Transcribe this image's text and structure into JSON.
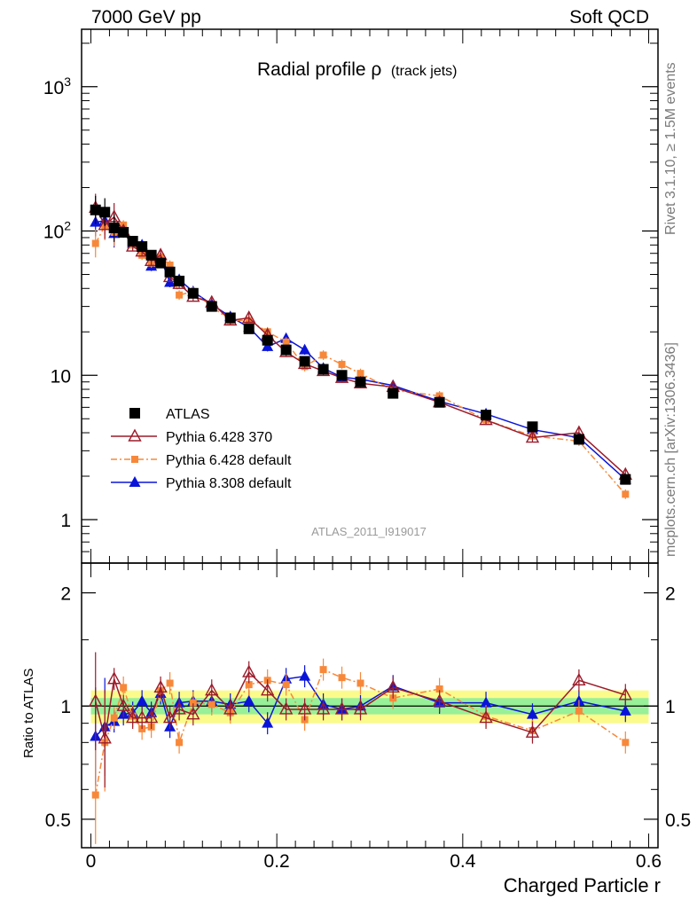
{
  "header": {
    "left": "7000 GeV pp",
    "right": "Soft QCD"
  },
  "side_text": {
    "rivet": "Rivet 3.1.10, ≥ 1.5M events",
    "mcplots": "mcplots.cern.ch [arXiv:1306.3436]"
  },
  "title": {
    "main": "Radial profile ρ",
    "sub": "(track jets)"
  },
  "analysis_id": "ATLAS_2011_I919017",
  "xlabel": "Charged Particle r",
  "ratio_ylabel": "Ratio to ATLAS",
  "colors": {
    "atlas": "#000000",
    "py6_370": "#9b1b2a",
    "py6_default": "#f7883a",
    "py8": "#0a14d8",
    "band_inner": "#98f098",
    "band_outer": "#fbfb8c"
  },
  "chart_data": [
    {
      "type": "scatter",
      "panel": "main",
      "yscale": "log",
      "xlim": [
        -0.01,
        0.61
      ],
      "ylim": [
        0.5,
        2500
      ],
      "x": [
        0.005,
        0.015,
        0.025,
        0.035,
        0.045,
        0.055,
        0.065,
        0.075,
        0.085,
        0.095,
        0.11,
        0.13,
        0.15,
        0.17,
        0.19,
        0.21,
        0.23,
        0.25,
        0.27,
        0.29,
        0.325,
        0.375,
        0.425,
        0.475,
        0.525,
        0.575
      ],
      "ytick_labels": [
        "1",
        "10",
        "10^2",
        "10^3"
      ],
      "xtick_labels": [
        "0",
        "0.2",
        "0.4",
        "0.6"
      ],
      "series": [
        {
          "name": "ATLAS",
          "marker": "square",
          "values": [
            140,
            135,
            105,
            98,
            85,
            78,
            68,
            60,
            52,
            45,
            37,
            30,
            25,
            21,
            17.5,
            15,
            12.5,
            11,
            10,
            9,
            7.5,
            6.5,
            5.3,
            4.4,
            3.6,
            1.9
          ]
        },
        {
          "name": "Pythia 6.428 370",
          "marker": "triangle-open",
          "values": [
            145,
            110,
            125,
            100,
            78,
            72,
            62,
            68,
            48,
            43,
            35,
            32,
            24,
            25,
            19,
            14.5,
            12,
            10.7,
            9.6,
            8.8,
            8.3,
            6.5,
            4.9,
            3.7,
            4.0,
            2.05
          ]
        },
        {
          "name": "Pythia 6.428 default",
          "marker": "square-small",
          "values": [
            82,
            108,
            98,
            110,
            80,
            68,
            60,
            66,
            58,
            36,
            38,
            30,
            24,
            24,
            20,
            17,
            11.5,
            13.8,
            11.9,
            10.3,
            7.9,
            7.2,
            4.9,
            3.8,
            3.5,
            1.5
          ]
        },
        {
          "name": "Pythia 8.308 default",
          "marker": "triangle",
          "values": [
            115,
            118,
            96,
            97,
            82,
            80,
            57,
            65,
            44,
            46,
            38,
            31,
            25.5,
            21.5,
            15.8,
            18,
            15,
            11.2,
            9.7,
            9.4,
            8.5,
            6.6,
            5.4,
            4.2,
            3.7,
            1.9
          ]
        }
      ]
    },
    {
      "type": "scatter",
      "panel": "ratio",
      "yscale": "log",
      "xlim": [
        -0.01,
        0.61
      ],
      "ylim": [
        0.42,
        2.4
      ],
      "ylabel": "Ratio to ATLAS",
      "xlabel": "Charged Particle r",
      "ytick_labels": [
        "0.5",
        "1",
        "2"
      ],
      "xtick_labels": [
        "0",
        "0.2",
        "0.4",
        "0.6"
      ],
      "band_inner": [
        0.05,
        0.05,
        0.05,
        0.05,
        0.05,
        0.05,
        0.05,
        0.05,
        0.05,
        0.05,
        0.05,
        0.05,
        0.05,
        0.05,
        0.05,
        0.05,
        0.05,
        0.05,
        0.05,
        0.05,
        0.05,
        0.05,
        0.05,
        0.05,
        0.05,
        0.05
      ],
      "band_outer": [
        0.1,
        0.1,
        0.1,
        0.1,
        0.1,
        0.1,
        0.1,
        0.1,
        0.1,
        0.1,
        0.1,
        0.1,
        0.1,
        0.1,
        0.1,
        0.1,
        0.1,
        0.1,
        0.1,
        0.1,
        0.1,
        0.1,
        0.1,
        0.1,
        0.1,
        0.1
      ],
      "series": [
        {
          "name": "Pythia 6.428 370",
          "marker": "triangle-open",
          "values": [
            1.03,
            0.82,
            1.18,
            1.0,
            0.93,
            0.93,
            0.93,
            1.12,
            0.93,
            0.98,
            0.95,
            1.1,
            0.98,
            1.23,
            1.1,
            0.98,
            0.98,
            0.98,
            0.98,
            0.98,
            1.12,
            1.03,
            0.93,
            0.85,
            1.17,
            1.07
          ]
        },
        {
          "name": "Pythia 6.428 default",
          "marker": "square-small",
          "values": [
            0.58,
            0.8,
            0.93,
            1.12,
            0.94,
            0.87,
            0.88,
            1.1,
            1.15,
            0.8,
            1.02,
            1.01,
            0.96,
            1.14,
            1.17,
            1.14,
            0.92,
            1.25,
            1.19,
            1.15,
            1.05,
            1.11,
            0.94,
            0.86,
            0.97,
            0.8
          ]
        },
        {
          "name": "Pythia 8.308 default",
          "marker": "triangle",
          "values": [
            0.83,
            0.88,
            0.91,
            0.95,
            0.96,
            1.03,
            0.96,
            1.08,
            0.88,
            1.02,
            1.03,
            1.03,
            1.01,
            1.03,
            0.9,
            1.18,
            1.2,
            1.01,
            0.98,
            1.0,
            1.13,
            1.02,
            1.02,
            0.95,
            1.03,
            0.97
          ]
        }
      ]
    }
  ],
  "legend": [
    {
      "label": "ATLAS",
      "marker": "square"
    },
    {
      "label": "Pythia 6.428 370",
      "marker": "triangle-open"
    },
    {
      "label": "Pythia 6.428 default",
      "marker": "square-small"
    },
    {
      "label": "Pythia 8.308 default",
      "marker": "triangle"
    }
  ]
}
